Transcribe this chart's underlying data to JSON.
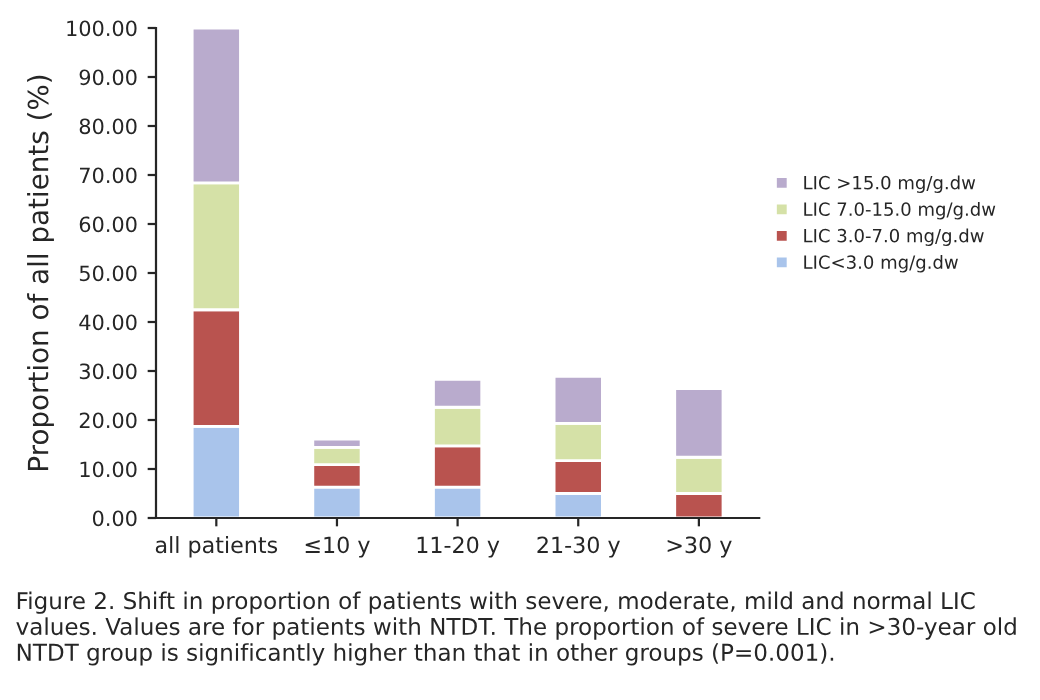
{
  "chart_data": {
    "type": "bar",
    "stacked": true,
    "ylabel": "Proportion of all patients (%)",
    "categories": [
      "all patients",
      "≤10 y",
      "11-20 y",
      "21-30 y",
      ">30 y"
    ],
    "series": [
      {
        "name": "LIC<3.0 mg/g.dw",
        "color": "#a9c4eb",
        "values": [
          18.7,
          6.3,
          6.3,
          5.0,
          0
        ]
      },
      {
        "name": "LIC 3.0-7.0 mg/g.dw",
        "color": "#b9534f",
        "values": [
          23.8,
          4.6,
          8.4,
          6.7,
          5.0
        ]
      },
      {
        "name": "LIC 7.0-15.0 mg/g.dw",
        "color": "#d5e1a7",
        "values": [
          25.9,
          3.5,
          7.9,
          7.6,
          7.4
        ]
      },
      {
        "name": "LIC >15.0 mg/g.dw",
        "color": "#b9abcd",
        "values": [
          31.6,
          1.7,
          5.7,
          9.6,
          14.0
        ]
      }
    ],
    "ylim": [
      0,
      100
    ],
    "yticks": [
      {
        "value": 0,
        "label": "0.00"
      },
      {
        "value": 10,
        "label": "10.00"
      },
      {
        "value": 20,
        "label": "20.00"
      },
      {
        "value": 30,
        "label": "30.00"
      },
      {
        "value": 40,
        "label": "40.00"
      },
      {
        "value": 50,
        "label": "50.00"
      },
      {
        "value": 60,
        "label": "60.00"
      },
      {
        "value": 70,
        "label": "70.00"
      },
      {
        "value": 80,
        "label": "80.00"
      },
      {
        "value": 90,
        "label": "90.00"
      },
      {
        "value": 100,
        "label": "100.00"
      }
    ],
    "grid": false,
    "legend": "right",
    "annotations": [
      "Figure 2. Shift in proportion of patients with severe, moderate, mild and normal LIC values. Values are for patients with NTDT. The proportion of severe LIC in >30-year old NTDT group is significantly higher than that in other groups (P=0.001)."
    ]
  }
}
